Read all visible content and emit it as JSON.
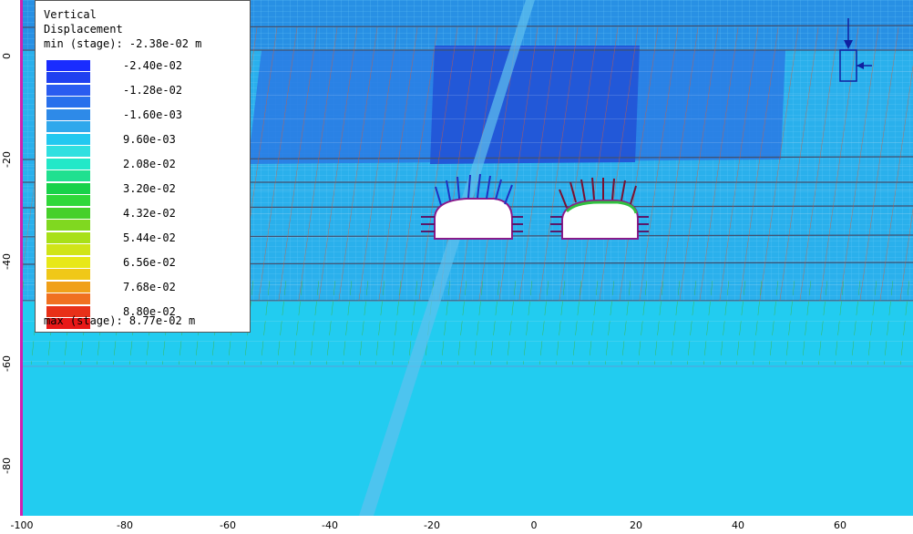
{
  "legend": {
    "title_line1": "Vertical",
    "title_line2": "Displacement",
    "min_text": "min (stage): -2.38e-02 m",
    "max_text": "max (stage): 8.77e-02 m",
    "entries": [
      {
        "label": "-2.40e-02",
        "color": "#1a2cff"
      },
      {
        "label": "-1.28e-02",
        "color": "#2a5cf0"
      },
      {
        "label": "-1.60e-03",
        "color": "#2e8ae8"
      },
      {
        "label": "9.60e-03",
        "color": "#22c8f0"
      },
      {
        "label": "2.08e-02",
        "color": "#22e8c8"
      },
      {
        "label": "3.20e-02",
        "color": "#18d24a"
      },
      {
        "label": "4.32e-02",
        "color": "#46d02a"
      },
      {
        "label": "5.44e-02",
        "color": "#a8e018"
      },
      {
        "label": "6.56e-02",
        "color": "#e8e818"
      },
      {
        "label": "7.68e-02",
        "color": "#f0a018"
      },
      {
        "label": "8.80e-02",
        "color": "#e83018"
      }
    ],
    "extra_swatch_colors": [
      "#2040f0",
      "#2870ec",
      "#30a8ec",
      "#30e0e0",
      "#20e090",
      "#30d83a",
      "#80d820",
      "#d0e418",
      "#f0c818",
      "#f07020",
      "#e81818"
    ]
  },
  "axes": {
    "x_ticks": [
      "-100",
      "-80",
      "-60",
      "-40",
      "-20",
      "0",
      "20",
      "40",
      "60"
    ],
    "y_ticks": [
      "0",
      "-20",
      "-40",
      "-60",
      "-80"
    ]
  },
  "colors": {
    "background_field": "#22ccf0",
    "upper_field": "#2ab0ec",
    "settlement_zone": "#2a70e0",
    "mesh_red": "#e05a30",
    "mesh_green": "#44c040",
    "support_strip": "#d020b0"
  }
}
